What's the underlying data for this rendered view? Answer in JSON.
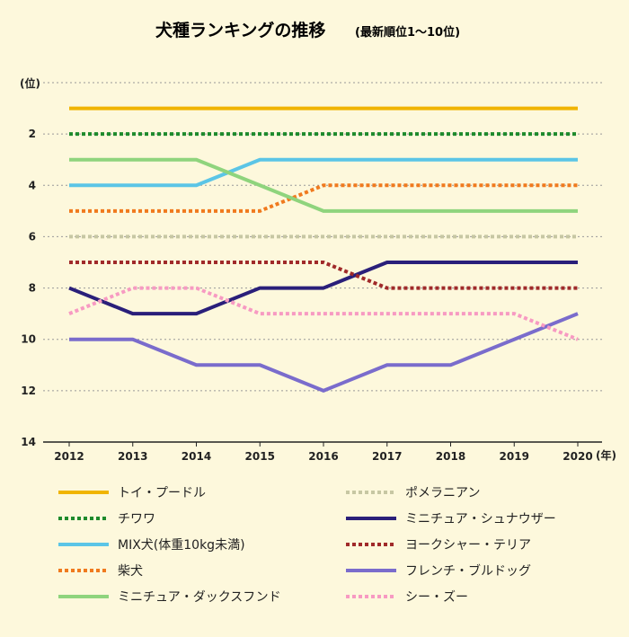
{
  "chart_data": {
    "type": "line",
    "title": "犬種ランキングの推移",
    "subtitle": "(最新順位1〜10位)",
    "ylabel": "(位)",
    "xlabel": "(年)",
    "ylim": [
      14,
      0
    ],
    "yticks": [
      2,
      4,
      6,
      8,
      10,
      12,
      14
    ],
    "x": [
      "2012",
      "2013",
      "2014",
      "2015",
      "2016",
      "2017",
      "2018",
      "2019",
      "2020"
    ],
    "grid": true,
    "legend_position": "bottom",
    "series": [
      {
        "name": "トイ・プードル",
        "values": [
          1,
          1,
          1,
          1,
          1,
          1,
          1,
          1,
          1
        ],
        "color": "#f0b400",
        "style": "solid"
      },
      {
        "name": "チワワ",
        "values": [
          2,
          2,
          2,
          2,
          2,
          2,
          2,
          2,
          2
        ],
        "color": "#1e8a2c",
        "style": "dotted"
      },
      {
        "name": "MIX犬(体重10kg未満)",
        "values": [
          4,
          4,
          4,
          3,
          3,
          3,
          3,
          3,
          3
        ],
        "color": "#5bc5e6",
        "style": "solid"
      },
      {
        "name": "柴犬",
        "values": [
          5,
          5,
          5,
          5,
          4,
          4,
          4,
          4,
          4
        ],
        "color": "#f07a1e",
        "style": "dotted"
      },
      {
        "name": "ミニチュア・ダックスフンド",
        "values": [
          3,
          3,
          3,
          4,
          5,
          5,
          5,
          5,
          5
        ],
        "color": "#8fd47d",
        "style": "solid"
      },
      {
        "name": "ポメラニアン",
        "values": [
          6,
          6,
          6,
          6,
          6,
          6,
          6,
          6,
          6
        ],
        "color": "#c7c7a3",
        "style": "dotted"
      },
      {
        "name": "ミニチュア・シュナウザー",
        "values": [
          8,
          9,
          9,
          8,
          8,
          7,
          7,
          7,
          7
        ],
        "color": "#2a1f7a",
        "style": "solid"
      },
      {
        "name": "ヨークシャー・テリア",
        "values": [
          7,
          7,
          7,
          7,
          7,
          8,
          8,
          8,
          8
        ],
        "color": "#a02a2a",
        "style": "dotted"
      },
      {
        "name": "フレンチ・ブルドッグ",
        "values": [
          10,
          10,
          11,
          11,
          12,
          11,
          11,
          10,
          9
        ],
        "color": "#7a6ccc",
        "style": "solid"
      },
      {
        "name": "シー・ズー",
        "values": [
          9,
          8,
          8,
          9,
          9,
          9,
          9,
          9,
          10
        ],
        "color": "#f79ac2",
        "style": "dotted"
      }
    ]
  }
}
